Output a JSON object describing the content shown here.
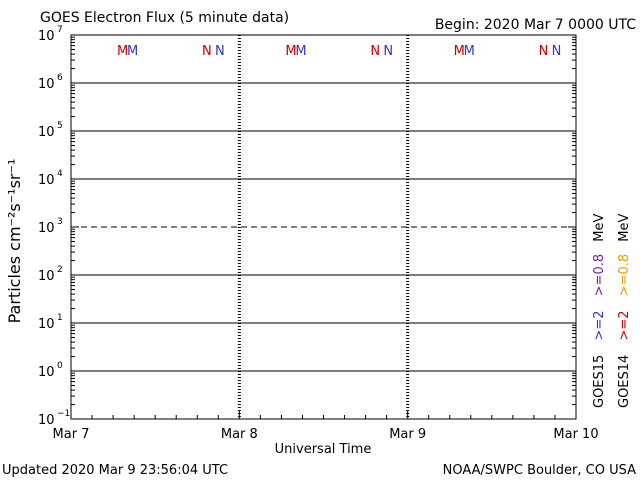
{
  "header": {
    "title": "GOES Electron Flux (5 minute data)",
    "begin": "Begin: 2020 Mar 7 0000 UTC"
  },
  "footer": {
    "updated": "Updated 2020 Mar  9 23:56:04 UTC",
    "source": "NOAA/SWPC Boulder, CO USA"
  },
  "chart_data": {
    "type": "line",
    "title": "GOES Electron Flux (5 minute data)",
    "xlabel": "Universal Time",
    "ylabel": "Particles cm⁻²s⁻¹sr⁻¹",
    "y_scale": "log",
    "ylim": [
      0.1,
      10000000
    ],
    "y_ticks": [
      {
        "base": "10",
        "exp": "7"
      },
      {
        "base": "10",
        "exp": "6"
      },
      {
        "base": "10",
        "exp": "5"
      },
      {
        "base": "10",
        "exp": "4"
      },
      {
        "base": "10",
        "exp": "3"
      },
      {
        "base": "10",
        "exp": "2"
      },
      {
        "base": "10",
        "exp": "1"
      },
      {
        "base": "10",
        "exp": "0"
      },
      {
        "base": "10",
        "exp": "−1"
      }
    ],
    "x_ticks": [
      "Mar 7",
      "Mar 8",
      "Mar 9",
      "Mar 10"
    ],
    "xlim": [
      "2020-03-07 00:00",
      "2020-03-10 00:00"
    ],
    "grid": "horizontal",
    "alert_threshold": 1000,
    "series": [],
    "legend": [
      {
        "satellite": "GOES15",
        "channels": [
          {
            "label": ">=2",
            "color": "#3333cc"
          },
          {
            "label": ">=0.8",
            "color": "#7a1fa2"
          }
        ],
        "unit": "MeV"
      },
      {
        "satellite": "GOES14",
        "channels": [
          {
            "label": ">=2",
            "color": "#cc0000"
          },
          {
            "label": ">=0.8",
            "color": "#e8a000"
          }
        ],
        "unit": "MeV"
      }
    ],
    "markers": {
      "days": [
        {
          "m_red": "M",
          "m_blue": "M",
          "n_red": "N",
          "n_blue": "N"
        },
        {
          "m_red": "M",
          "m_blue": "M",
          "n_red": "N",
          "n_blue": "N"
        },
        {
          "m_red": "M",
          "m_blue": "M",
          "n_red": "N",
          "n_blue": "N"
        }
      ]
    }
  },
  "colors": {
    "red": "#cc0000",
    "blue": "#3333cc",
    "purple": "#7a1fa2",
    "orange": "#e8a000"
  }
}
